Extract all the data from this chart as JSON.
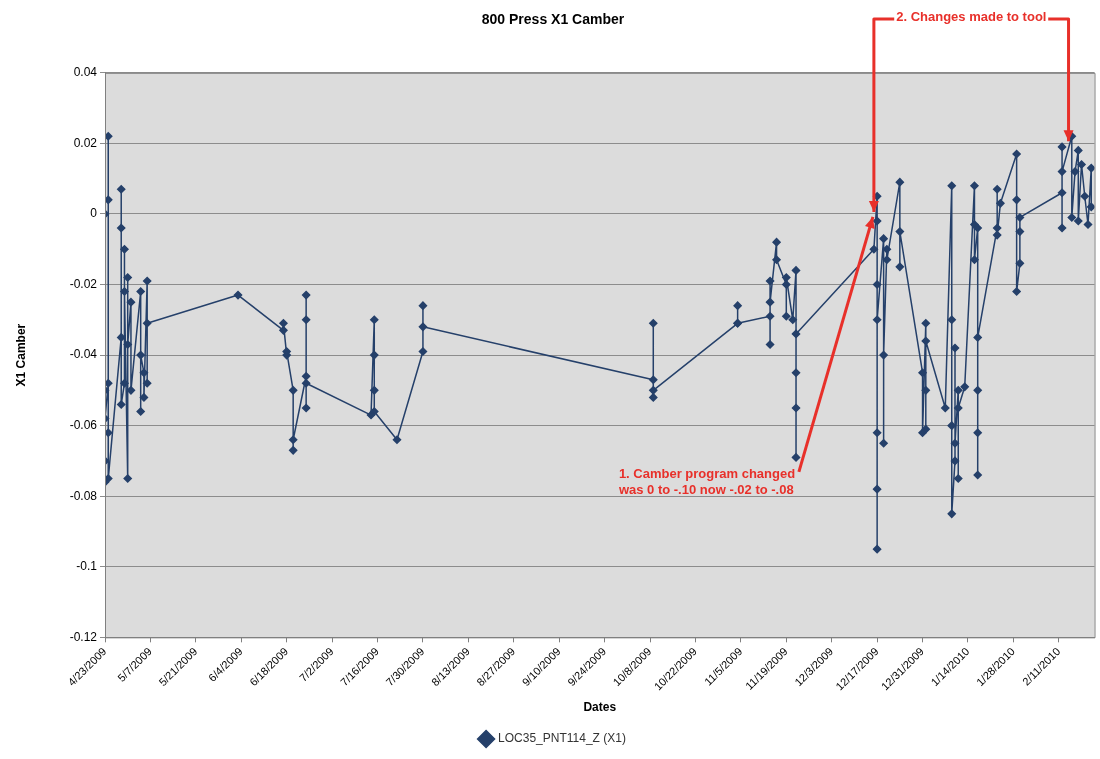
{
  "chart_data": {
    "type": "line",
    "title": "800 Press X1 Camber",
    "xlabel": "Dates",
    "ylabel": "X1 Camber",
    "xlim": [
      "2009-04-23",
      "2010-02-22"
    ],
    "xticks": [
      {
        "value": "2009-04-23",
        "label": "4/23/2009"
      },
      {
        "value": "2009-05-07",
        "label": "5/7/2009"
      },
      {
        "value": "2009-05-21",
        "label": "5/21/2009"
      },
      {
        "value": "2009-06-04",
        "label": "6/4/2009"
      },
      {
        "value": "2009-06-18",
        "label": "6/18/2009"
      },
      {
        "value": "2009-07-02",
        "label": "7/2/2009"
      },
      {
        "value": "2009-07-16",
        "label": "7/16/2009"
      },
      {
        "value": "2009-07-30",
        "label": "7/30/2009"
      },
      {
        "value": "2009-08-13",
        "label": "8/13/2009"
      },
      {
        "value": "2009-08-27",
        "label": "8/27/2009"
      },
      {
        "value": "2009-09-10",
        "label": "9/10/2009"
      },
      {
        "value": "2009-09-24",
        "label": "9/24/2009"
      },
      {
        "value": "2009-10-08",
        "label": "10/8/2009"
      },
      {
        "value": "2009-10-22",
        "label": "10/22/2009"
      },
      {
        "value": "2009-11-05",
        "label": "11/5/2009"
      },
      {
        "value": "2009-11-19",
        "label": "11/19/2009"
      },
      {
        "value": "2009-12-03",
        "label": "12/3/2009"
      },
      {
        "value": "2009-12-17",
        "label": "12/17/2009"
      },
      {
        "value": "2009-12-31",
        "label": "12/31/2009"
      },
      {
        "value": "2010-01-14",
        "label": "1/14/2010"
      },
      {
        "value": "2010-01-28",
        "label": "1/28/2010"
      },
      {
        "value": "2010-02-11",
        "label": "2/11/2010"
      }
    ],
    "ylim": [
      -0.12,
      0.04
    ],
    "yticks": [
      -0.12,
      -0.1,
      -0.08,
      -0.06,
      -0.04,
      -0.02,
      0,
      0.02,
      0.04
    ],
    "grid": "y",
    "legend": "bottom",
    "marker": "diamond",
    "line_style": "solid",
    "annotations": [
      {
        "text": "1. Camber program changed was 0 to -.10 now -.02 to -.08",
        "x": "2009-12-16",
        "y": 0
      },
      {
        "text": "2. Changes made to tool",
        "x": "2010-02-14",
        "y": 0.02
      }
    ],
    "series": [
      {
        "name": "LOC35_PNT114_Z (X1)",
        "color": "#25406a",
        "x": [
          "2009-04-23",
          "2009-04-23",
          "2009-04-23",
          "2009-04-23",
          "2009-04-23",
          "2009-04-24",
          "2009-04-24",
          "2009-04-24",
          "2009-04-24",
          "2009-04-24",
          "2009-04-28",
          "2009-04-28",
          "2009-04-28",
          "2009-04-28",
          "2009-04-29",
          "2009-04-29",
          "2009-04-29",
          "2009-04-30",
          "2009-04-30",
          "2009-04-30",
          "2009-05-01",
          "2009-05-01",
          "2009-05-04",
          "2009-05-04",
          "2009-05-04",
          "2009-05-05",
          "2009-05-05",
          "2009-05-06",
          "2009-05-06",
          "2009-05-06",
          "2009-06-03",
          "2009-06-17",
          "2009-06-17",
          "2009-06-18",
          "2009-06-18",
          "2009-06-20",
          "2009-06-20",
          "2009-06-20",
          "2009-06-24",
          "2009-06-24",
          "2009-06-24",
          "2009-06-24",
          "2009-06-24",
          "2009-07-14",
          "2009-07-15",
          "2009-07-15",
          "2009-07-15",
          "2009-07-15",
          "2009-07-22",
          "2009-07-30",
          "2009-07-30",
          "2009-07-30",
          "2009-10-09",
          "2009-10-09",
          "2009-10-09",
          "2009-10-09",
          "2009-11-04",
          "2009-11-04",
          "2009-11-04",
          "2009-11-14",
          "2009-11-14",
          "2009-11-14",
          "2009-11-14",
          "2009-11-16",
          "2009-11-16",
          "2009-11-19",
          "2009-11-19",
          "2009-11-19",
          "2009-11-21",
          "2009-11-22",
          "2009-11-22",
          "2009-11-22",
          "2009-11-22",
          "2009-11-22",
          "2009-12-16",
          "2009-12-17",
          "2009-12-17",
          "2009-12-17",
          "2009-12-17",
          "2009-12-17",
          "2009-12-17",
          "2009-12-17",
          "2009-12-19",
          "2009-12-19",
          "2009-12-19",
          "2009-12-20",
          "2009-12-20",
          "2009-12-24",
          "2009-12-24",
          "2009-12-24",
          "2009-12-31",
          "2009-12-31",
          "2010-01-01",
          "2010-01-01",
          "2010-01-01",
          "2010-01-01",
          "2010-01-07",
          "2010-01-09",
          "2010-01-09",
          "2010-01-09",
          "2010-01-09",
          "2010-01-10",
          "2010-01-10",
          "2010-01-10",
          "2010-01-11",
          "2010-01-11",
          "2010-01-11",
          "2010-01-13",
          "2010-01-16",
          "2010-01-16",
          "2010-01-16",
          "2010-01-17",
          "2010-01-17",
          "2010-01-17",
          "2010-01-17",
          "2010-01-17",
          "2010-01-23",
          "2010-01-23",
          "2010-01-23",
          "2010-01-24",
          "2010-01-29",
          "2010-01-29",
          "2010-01-29",
          "2010-01-30",
          "2010-01-30",
          "2010-01-30",
          "2010-02-12",
          "2010-02-12",
          "2010-02-12",
          "2010-02-12",
          "2010-02-15",
          "2010-02-15",
          "2010-02-16",
          "2010-02-17",
          "2010-02-17",
          "2010-02-18",
          "2010-02-19",
          "2010-02-20",
          "2010-02-21",
          "2010-02-21"
        ],
        "values": [
          0,
          -0.05,
          -0.076,
          -0.07,
          -0.058,
          -0.048,
          0.022,
          0.004,
          -0.062,
          -0.075,
          -0.035,
          0.007,
          -0.004,
          -0.054,
          -0.048,
          -0.01,
          -0.022,
          -0.075,
          -0.018,
          -0.037,
          -0.025,
          -0.05,
          -0.022,
          -0.056,
          -0.04,
          -0.045,
          -0.052,
          -0.019,
          -0.048,
          -0.031,
          -0.023,
          -0.033,
          -0.031,
          -0.04,
          -0.039,
          -0.05,
          -0.067,
          -0.064,
          -0.046,
          -0.023,
          -0.055,
          -0.03,
          -0.048,
          -0.057,
          -0.03,
          -0.04,
          -0.05,
          -0.056,
          -0.064,
          -0.039,
          -0.026,
          -0.032,
          -0.047,
          -0.031,
          -0.052,
          -0.05,
          -0.031,
          -0.026,
          -0.031,
          -0.029,
          -0.019,
          -0.037,
          -0.025,
          -0.008,
          -0.013,
          -0.02,
          -0.029,
          -0.018,
          -0.03,
          -0.016,
          -0.045,
          -0.069,
          -0.055,
          -0.034,
          -0.01,
          0.005,
          -0.002,
          -0.02,
          -0.062,
          -0.078,
          -0.095,
          -0.03,
          -0.007,
          -0.065,
          -0.04,
          -0.01,
          -0.013,
          0.009,
          -0.015,
          -0.005,
          -0.045,
          -0.062,
          -0.031,
          -0.05,
          -0.061,
          -0.036,
          -0.055,
          0.008,
          -0.03,
          -0.06,
          -0.085,
          -0.07,
          -0.038,
          -0.065,
          -0.05,
          -0.075,
          -0.055,
          -0.049,
          0.008,
          -0.003,
          -0.013,
          -0.004,
          -0.05,
          -0.062,
          -0.074,
          -0.035,
          -0.004,
          0.007,
          -0.006,
          0.003,
          0.017,
          0.004,
          -0.022,
          -0.014,
          -0.005,
          -0.001,
          0.006,
          0.019,
          -0.004,
          0.012,
          0.022,
          -0.001,
          0.012,
          0.018,
          -0.002,
          0.014,
          0.005,
          -0.003,
          0.013,
          0.002
        ]
      }
    ]
  }
}
